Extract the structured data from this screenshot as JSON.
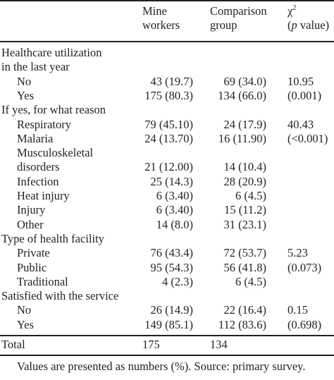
{
  "table": {
    "columns": {
      "mine": [
        "Mine",
        "workers"
      ],
      "comparison": [
        "Comparison",
        "group"
      ],
      "chi": {
        "chi_symbol": "χ",
        "chi_sup": "2",
        "open": "(",
        "p": "p",
        "value": " value)"
      }
    },
    "rows": [
      {
        "kind": "section",
        "label": "Healthcare utilization"
      },
      {
        "kind": "section",
        "label": "in the last year"
      },
      {
        "kind": "item",
        "label": "No",
        "mine": "43 (19.7)",
        "comparison": "69 (34.0)",
        "chi": "10.95"
      },
      {
        "kind": "item",
        "label": "Yes",
        "mine": "175 (80.3)",
        "comparison": "134 (66.0)",
        "chi": "(0.001)"
      },
      {
        "kind": "section",
        "label": "If yes, for what reason"
      },
      {
        "kind": "item",
        "label": "Respiratory",
        "mine": "79 (45.10)",
        "comparison": "24 (17.9)",
        "chi": "40.43"
      },
      {
        "kind": "item",
        "label": "Malaria",
        "mine": "24 (13.70)",
        "comparison": "16 (11.90)",
        "chi": "(<0.001)"
      },
      {
        "kind": "item",
        "label": "Musculoskeletal",
        "mine": "",
        "comparison": "",
        "chi": ""
      },
      {
        "kind": "item",
        "label": "disorders",
        "mine": "21 (12.00)",
        "comparison": "14 (10.4)",
        "chi": ""
      },
      {
        "kind": "item",
        "label": "Infection",
        "mine": "25 (14.3)",
        "comparison": "28 (20.9)",
        "chi": ""
      },
      {
        "kind": "item",
        "label": "Heat injury",
        "mine": "6 (3.40)",
        "comparison": "6 (4.5)",
        "chi": ""
      },
      {
        "kind": "item",
        "label": "Injury",
        "mine": "6 (3.40)",
        "comparison": "15 (11.2)",
        "chi": ""
      },
      {
        "kind": "item",
        "label": "Other",
        "mine": "14 (8.0)",
        "comparison": "31 (23.1)",
        "chi": ""
      },
      {
        "kind": "section",
        "label": "Type of health facility"
      },
      {
        "kind": "item",
        "label": "Private",
        "mine": "76 (43.4)",
        "comparison": "72 (53.7)",
        "chi": "5.23"
      },
      {
        "kind": "item",
        "label": "Public",
        "mine": "95 (54.3)",
        "comparison": "56 (41.8)",
        "chi": "(0.073)"
      },
      {
        "kind": "item",
        "label": "Traditional",
        "mine": "4 (2.3)",
        "comparison": "6 (4.5)",
        "chi": ""
      },
      {
        "kind": "section",
        "label": "Satisfied with the service"
      },
      {
        "kind": "item",
        "label": "No",
        "mine": "26 (14.9)",
        "comparison": "22 (16.4)",
        "chi": "0.15"
      },
      {
        "kind": "item",
        "label": "Yes",
        "mine": "149 (85.1)",
        "comparison": "112 (83.6)",
        "chi": "(0.698)"
      }
    ],
    "total": {
      "label": "Total",
      "mine": "175",
      "comparison": "134"
    },
    "footnote": "Values are presented as numbers (%). Source: primary survey."
  }
}
